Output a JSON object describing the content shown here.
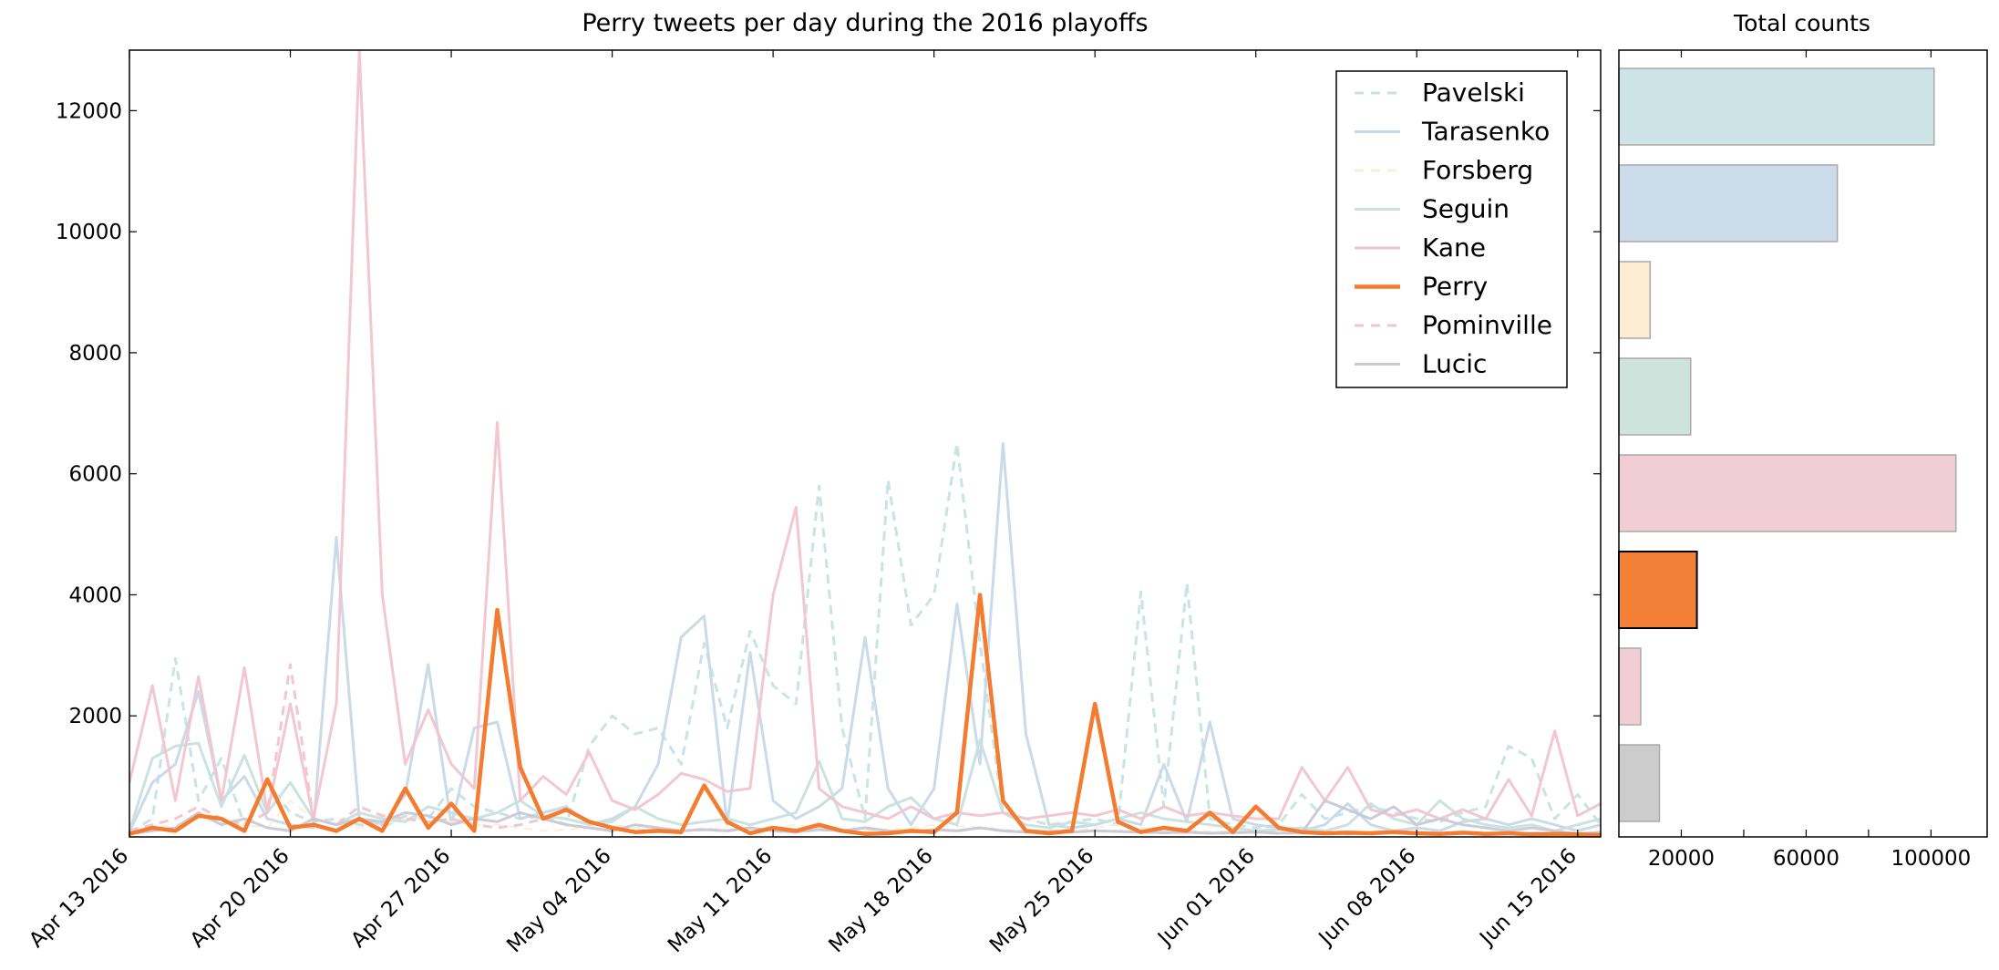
{
  "chart_data": [
    {
      "type": "line",
      "title": "Perry tweets per day during the 2016 playoffs",
      "xlabel": "",
      "ylabel": "",
      "ylim": [
        0,
        13000
      ],
      "yticks": [
        2000,
        4000,
        6000,
        8000,
        10000,
        12000
      ],
      "xtick_labels": [
        "Apr 13 2016",
        "Apr 20 2016",
        "Apr 27 2016",
        "May 04 2016",
        "May 11 2016",
        "May 18 2016",
        "May 25 2016",
        "Jun 01 2016",
        "Jun 08 2016",
        "Jun 15 2016"
      ],
      "grid": false,
      "legend_position": "top-right",
      "x": [
        "2016-04-13",
        "2016-04-14",
        "2016-04-15",
        "2016-04-16",
        "2016-04-17",
        "2016-04-18",
        "2016-04-19",
        "2016-04-20",
        "2016-04-21",
        "2016-04-22",
        "2016-04-23",
        "2016-04-24",
        "2016-04-25",
        "2016-04-26",
        "2016-04-27",
        "2016-04-28",
        "2016-04-29",
        "2016-04-30",
        "2016-05-01",
        "2016-05-02",
        "2016-05-03",
        "2016-05-04",
        "2016-05-05",
        "2016-05-06",
        "2016-05-07",
        "2016-05-08",
        "2016-05-09",
        "2016-05-10",
        "2016-05-11",
        "2016-05-12",
        "2016-05-13",
        "2016-05-14",
        "2016-05-15",
        "2016-05-16",
        "2016-05-17",
        "2016-05-18",
        "2016-05-19",
        "2016-05-20",
        "2016-05-21",
        "2016-05-22",
        "2016-05-23",
        "2016-05-24",
        "2016-05-25",
        "2016-05-26",
        "2016-05-27",
        "2016-05-28",
        "2016-05-29",
        "2016-05-30",
        "2016-05-31",
        "2016-06-01",
        "2016-06-02",
        "2016-06-03",
        "2016-06-04",
        "2016-06-05",
        "2016-06-06",
        "2016-06-07",
        "2016-06-08",
        "2016-06-09",
        "2016-06-10",
        "2016-06-11",
        "2016-06-12",
        "2016-06-13",
        "2016-06-14",
        "2016-06-15",
        "2016-06-16"
      ],
      "series": [
        {
          "name": "Pavelski",
          "color": "#c5e3e4",
          "dash": true,
          "width": 3,
          "values": [
            80,
            300,
            2950,
            600,
            1300,
            200,
            900,
            400,
            250,
            300,
            200,
            150,
            350,
            300,
            800,
            500,
            400,
            300,
            350,
            200,
            1500,
            2000,
            1700,
            1800,
            1200,
            3200,
            1800,
            3400,
            2500,
            2200,
            5800,
            1800,
            300,
            5900,
            3500,
            4000,
            6500,
            3200,
            400,
            300,
            200,
            250,
            300,
            200,
            4050,
            500,
            4200,
            300,
            200,
            150,
            200,
            700,
            300,
            400,
            500,
            400,
            300,
            250,
            400,
            500,
            1500,
            1300,
            300,
            700,
            200
          ]
        },
        {
          "name": "Tarasenko",
          "color": "#c6d8e8",
          "dash": false,
          "width": 3,
          "values": [
            80,
            900,
            1200,
            2400,
            600,
            1000,
            300,
            200,
            150,
            4950,
            300,
            200,
            700,
            2850,
            200,
            1800,
            1900,
            300,
            400,
            500,
            200,
            300,
            500,
            1200,
            3300,
            3650,
            200,
            3050,
            600,
            300,
            500,
            800,
            3300,
            800,
            200,
            800,
            3850,
            1200,
            6500,
            1700,
            200,
            150,
            200,
            300,
            200,
            1200,
            250,
            1900,
            300,
            200,
            150,
            100,
            200,
            550,
            200,
            100,
            150,
            100,
            250,
            300,
            200,
            300,
            200,
            100,
            200
          ]
        },
        {
          "name": "Forsberg",
          "color": "#fbeed3",
          "dash": true,
          "width": 2,
          "values": [
            100,
            150,
            200,
            300,
            250,
            200,
            150,
            600,
            300,
            200,
            150,
            200,
            300,
            350,
            250,
            200,
            200,
            150,
            100,
            120,
            150,
            200,
            150,
            120,
            100,
            150,
            120,
            100,
            150,
            200,
            150,
            120,
            100,
            120,
            150,
            200,
            180,
            150,
            120,
            100,
            120,
            100,
            150,
            200,
            150,
            120,
            100,
            90,
            100,
            80,
            90,
            100,
            80,
            70,
            90,
            100,
            80,
            70,
            60,
            70,
            80,
            60,
            70,
            80,
            60
          ]
        },
        {
          "name": "Seguin",
          "color": "#c8e2dd",
          "dash": false,
          "width": 3,
          "values": [
            100,
            1300,
            1500,
            1550,
            500,
            1350,
            400,
            900,
            300,
            200,
            400,
            300,
            250,
            500,
            400,
            300,
            400,
            600,
            350,
            300,
            200,
            250,
            500,
            300,
            200,
            250,
            300,
            200,
            300,
            400,
            1250,
            300,
            250,
            500,
            650,
            300,
            200,
            1600,
            400,
            200,
            150,
            250,
            200,
            300,
            400,
            300,
            250,
            200,
            150,
            100,
            120,
            150,
            100,
            200,
            550,
            300,
            200,
            600,
            300,
            200,
            150,
            200,
            100,
            200,
            300
          ]
        },
        {
          "name": "Kane",
          "color": "#f2c4ce",
          "dash": false,
          "width": 3,
          "values": [
            900,
            2500,
            600,
            2650,
            600,
            2800,
            400,
            2200,
            300,
            2200,
            13000,
            4000,
            1200,
            2100,
            1200,
            800,
            6850,
            600,
            1000,
            700,
            1400,
            600,
            450,
            700,
            1050,
            950,
            750,
            800,
            4000,
            5450,
            800,
            500,
            400,
            300,
            500,
            300,
            400,
            350,
            400,
            300,
            350,
            400,
            350,
            450,
            300,
            500,
            350,
            400,
            350,
            300,
            300,
            1150,
            600,
            1150,
            450,
            350,
            450,
            300,
            450,
            300,
            950,
            350,
            1750,
            350,
            550
          ]
        },
        {
          "name": "Perry",
          "color": "#f47c30",
          "dash": false,
          "width": 4.5,
          "highlight": true,
          "values": [
            50,
            150,
            100,
            350,
            300,
            100,
            950,
            150,
            200,
            100,
            300,
            100,
            800,
            150,
            550,
            100,
            3750,
            1150,
            300,
            450,
            250,
            150,
            80,
            100,
            80,
            850,
            250,
            60,
            150,
            100,
            200,
            100,
            50,
            60,
            100,
            80,
            400,
            4000,
            600,
            100,
            60,
            100,
            2200,
            250,
            80,
            150,
            100,
            400,
            80,
            500,
            150,
            80,
            60,
            70,
            60,
            80,
            60,
            50,
            70,
            50,
            60,
            40,
            50,
            40,
            30
          ]
        },
        {
          "name": "Pominville",
          "color": "#f2c4ce",
          "dash": true,
          "width": 3,
          "values": [
            100,
            200,
            300,
            500,
            300,
            200,
            400,
            2850,
            300,
            200,
            500,
            350,
            300,
            250,
            300,
            200,
            150,
            200,
            300,
            200,
            150,
            100,
            200,
            150,
            100,
            120,
            100,
            150,
            100,
            80,
            120,
            100,
            150,
            100,
            80,
            120,
            100,
            150,
            100,
            80,
            90,
            80,
            100,
            90,
            80,
            70,
            80,
            60,
            70,
            80,
            60,
            70,
            60,
            50,
            60,
            70,
            50,
            60,
            50,
            40,
            50,
            60,
            50,
            40,
            50
          ]
        },
        {
          "name": "Lucic",
          "color": "#c9c9d6",
          "dash": false,
          "width": 3,
          "values": [
            50,
            100,
            150,
            400,
            200,
            300,
            150,
            100,
            300,
            200,
            300,
            250,
            400,
            350,
            200,
            300,
            250,
            400,
            300,
            200,
            150,
            100,
            200,
            150,
            100,
            120,
            100,
            150,
            100,
            80,
            120,
            100,
            150,
            100,
            80,
            120,
            100,
            150,
            100,
            80,
            90,
            80,
            100,
            90,
            80,
            70,
            80,
            60,
            70,
            80,
            60,
            70,
            600,
            450,
            300,
            500,
            200,
            300,
            200,
            150,
            100,
            150,
            100,
            50,
            80
          ]
        }
      ]
    },
    {
      "type": "bar",
      "orientation": "horizontal",
      "title": "Total counts",
      "xlim": [
        0,
        118000
      ],
      "xticks": [
        20000,
        60000,
        100000
      ],
      "categories": [
        "Pavelski",
        "Tarasenko",
        "Forsberg",
        "Seguin",
        "Kane",
        "Perry",
        "Pominville",
        "Lucic"
      ],
      "values": [
        101000,
        70000,
        10000,
        23000,
        108000,
        25000,
        7000,
        13000
      ],
      "colors": [
        "#cde3e5",
        "#cbdbea",
        "#fdedd3",
        "#cde3dc",
        "#f1cdd5",
        "#f47f36",
        "#f1cdd5",
        "#cccccc"
      ],
      "highlight": "Perry"
    }
  ]
}
